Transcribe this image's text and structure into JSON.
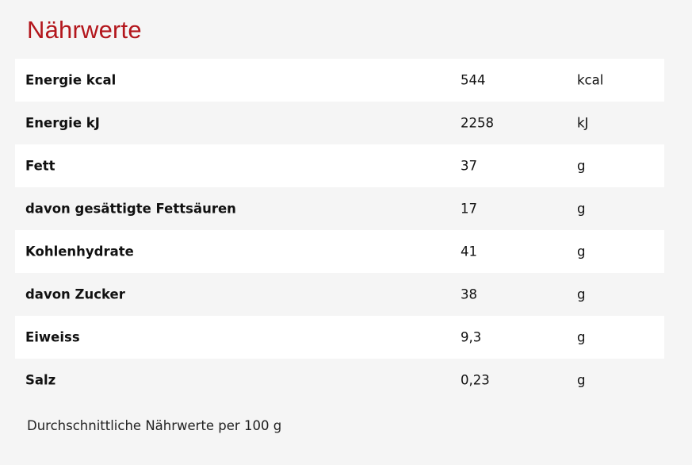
{
  "title": "Nährwerte",
  "table": {
    "rows": [
      [
        "Energie kcal",
        "544",
        "kcal"
      ],
      [
        "Energie kJ",
        "2258",
        "kJ"
      ],
      [
        "Fett",
        "37",
        "g"
      ],
      [
        "davon gesättigte Fettsäuren",
        "17",
        "g"
      ],
      [
        "Kohlenhydrate",
        "41",
        "g"
      ],
      [
        "davon Zucker",
        "38",
        "g"
      ],
      [
        "Eiweiss",
        "9,3",
        "g"
      ],
      [
        "Salz",
        "0,23",
        "g"
      ]
    ]
  },
  "footnote": "Durchschnittliche Nährwerte per 100 g"
}
